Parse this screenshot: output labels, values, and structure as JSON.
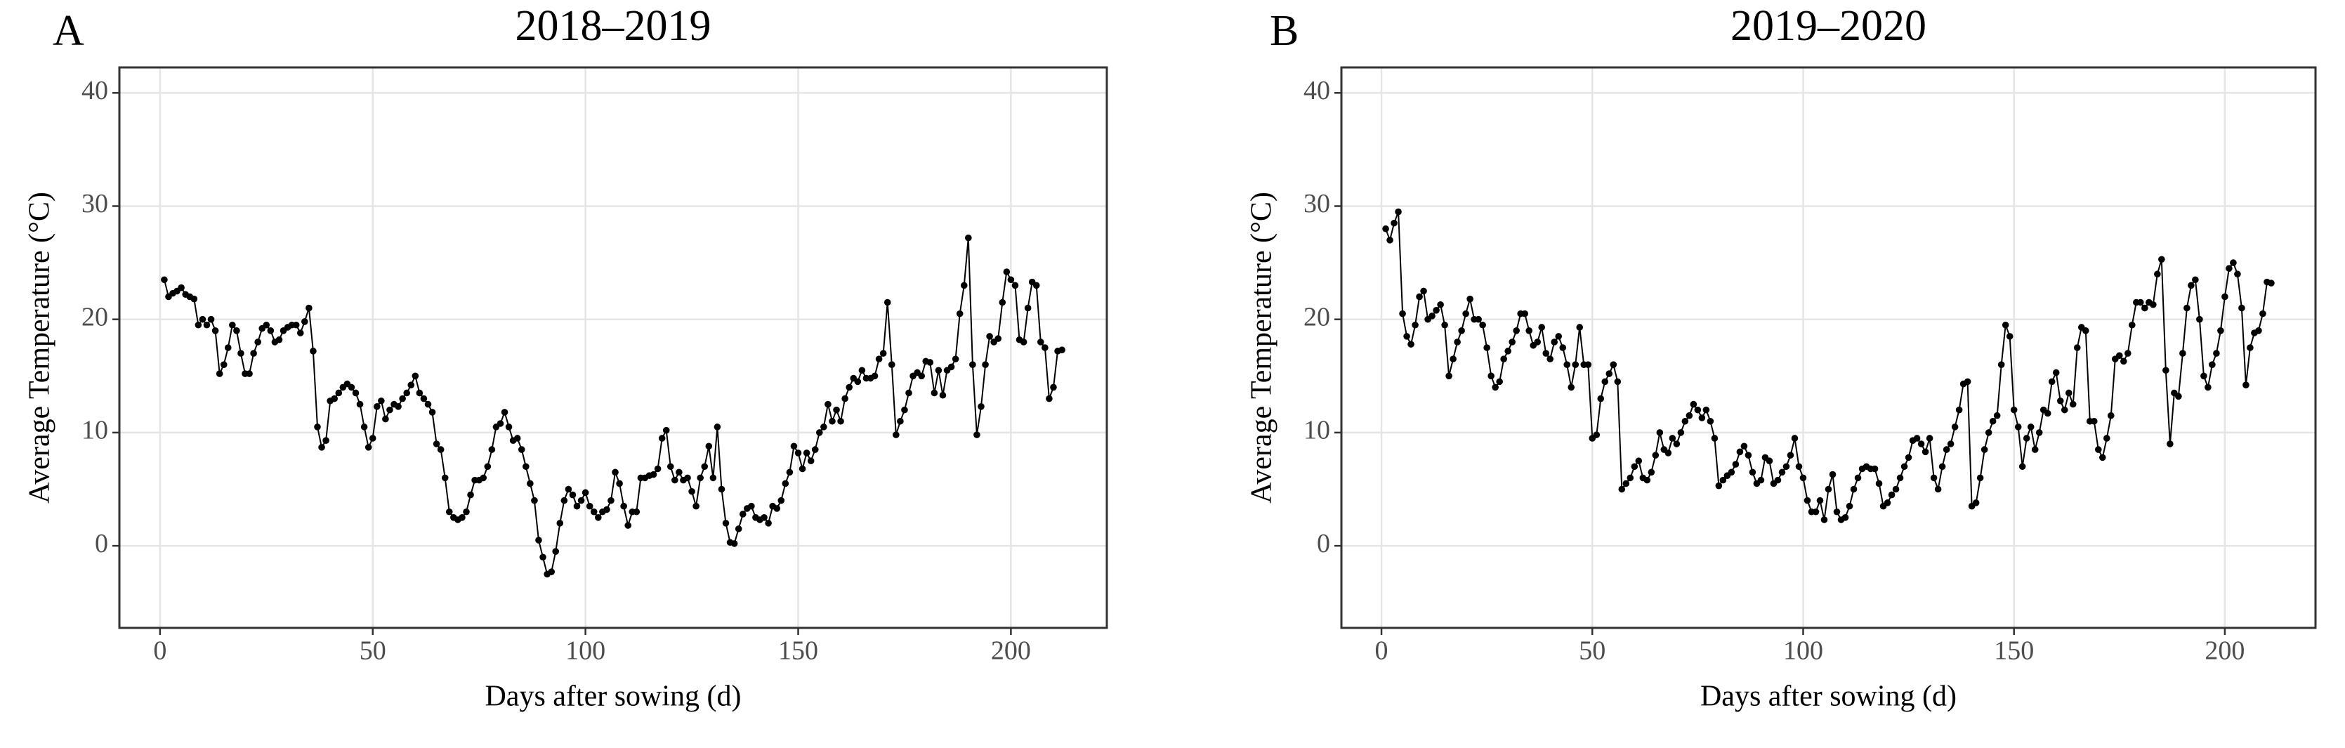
{
  "chart_data": [
    {
      "type": "line",
      "panel_label": "A",
      "title": "2018–2019",
      "x_label": "Days after sowing (d)",
      "y_label": "Average Temperature  (°C)",
      "xlim": [
        -9.55,
        222.55
      ],
      "ylim": [
        -7.25,
        42.25
      ],
      "xticks": [
        0,
        50,
        100,
        150,
        200
      ],
      "yticks": [
        0,
        10,
        20,
        30,
        40
      ],
      "grid": true,
      "series": [
        {
          "name": "Average Temperature",
          "color": "#000000",
          "x": [
            1,
            2,
            3,
            4,
            5,
            6,
            7,
            8,
            9,
            10,
            11,
            12,
            13,
            14,
            15,
            16,
            17,
            18,
            19,
            20,
            21,
            22,
            23,
            24,
            25,
            26,
            27,
            28,
            29,
            30,
            31,
            32,
            33,
            34,
            35,
            36,
            37,
            38,
            39,
            40,
            41,
            42,
            43,
            44,
            45,
            46,
            47,
            48,
            49,
            50,
            51,
            52,
            53,
            54,
            55,
            56,
            57,
            58,
            59,
            60,
            61,
            62,
            63,
            64,
            65,
            66,
            67,
            68,
            69,
            70,
            71,
            72,
            73,
            74,
            75,
            76,
            77,
            78,
            79,
            80,
            81,
            82,
            83,
            84,
            85,
            86,
            87,
            88,
            89,
            90,
            91,
            92,
            93,
            94,
            95,
            96,
            97,
            98,
            99,
            100,
            101,
            102,
            103,
            104,
            105,
            106,
            107,
            108,
            109,
            110,
            111,
            112,
            113,
            114,
            115,
            116,
            117,
            118,
            119,
            120,
            121,
            122,
            123,
            124,
            125,
            126,
            127,
            128,
            129,
            130,
            131,
            132,
            133,
            134,
            135,
            136,
            137,
            138,
            139,
            140,
            141,
            142,
            143,
            144,
            145,
            146,
            147,
            148,
            149,
            150,
            151,
            152,
            153,
            154,
            155,
            156,
            157,
            158,
            159,
            160,
            161,
            162,
            163,
            164,
            165,
            166,
            167,
            168,
            169,
            170,
            171,
            172,
            173,
            174,
            175,
            176,
            177,
            178,
            179,
            180,
            181,
            182,
            183,
            184,
            185,
            186,
            187,
            188,
            189,
            190,
            191,
            192,
            193,
            194,
            195,
            196,
            197,
            198,
            199,
            200,
            201,
            202,
            203,
            204,
            205,
            206,
            207,
            208,
            209,
            210,
            211,
            212
          ],
          "values": [
            23.5,
            22,
            22.3,
            22.5,
            22.8,
            22.2,
            22,
            21.8,
            19.5,
            20,
            19.5,
            20,
            19,
            15.2,
            16,
            17.5,
            19.5,
            19,
            17,
            15.2,
            15.2,
            17,
            18,
            19.2,
            19.5,
            19,
            18,
            18.2,
            19,
            19.3,
            19.5,
            19.5,
            18.8,
            19.8,
            21,
            17.2,
            10.5,
            8.7,
            9.3,
            12.8,
            13,
            13.5,
            14,
            14.3,
            14,
            13.5,
            12.5,
            10.5,
            8.7,
            9.5,
            12.3,
            12.8,
            11.2,
            12,
            12.5,
            12.3,
            13,
            13.5,
            14.2,
            15,
            13.5,
            13,
            12.5,
            11.8,
            9,
            8.5,
            6,
            3,
            2.5,
            2.3,
            2.5,
            3,
            4.5,
            5.8,
            5.8,
            6,
            7,
            8.5,
            10.5,
            10.8,
            11.8,
            10.5,
            9.3,
            9.5,
            8.5,
            7,
            5.5,
            4,
            0.5,
            -1,
            -2.5,
            -2.3,
            -0.5,
            2,
            4,
            5,
            4.5,
            3.5,
            4,
            4.7,
            3.5,
            3,
            2.5,
            3,
            3.2,
            4,
            6.5,
            5.5,
            3.5,
            1.8,
            3,
            3,
            6,
            6,
            6.2,
            6.3,
            6.8,
            9.5,
            10.2,
            7,
            5.8,
            6.5,
            5.8,
            6,
            4.8,
            3.5,
            6,
            7,
            8.8,
            6,
            10.5,
            5,
            2,
            0.3,
            0.2,
            1.5,
            2.8,
            3.3,
            3.5,
            2.5,
            2.3,
            2.5,
            2,
            3.5,
            3.3,
            4,
            5.5,
            6.5,
            8.8,
            8.2,
            6.8,
            8.2,
            7.5,
            8.5,
            10,
            10.5,
            12.5,
            11,
            12,
            11,
            13,
            14,
            14.8,
            14.5,
            15.5,
            14.8,
            14.8,
            15,
            16.5,
            17,
            21.5,
            16,
            9.8,
            11,
            12,
            13.5,
            15,
            15.3,
            15,
            16.3,
            16.2,
            13.5,
            15.5,
            13.3,
            15.5,
            15.8,
            16.5,
            20.5,
            23,
            27.2,
            16,
            9.8,
            12.3,
            16,
            18.5,
            18,
            18.3,
            21.5,
            24.2,
            23.5,
            23,
            18.2,
            18,
            21,
            23.3,
            23,
            18,
            17.5,
            13,
            14,
            17.2,
            17.3
          ]
        }
      ]
    },
    {
      "type": "line",
      "panel_label": "B",
      "title": "2019–2020",
      "x_label": "Days after sowing (d)",
      "y_label": "Average Temperature  (°C)",
      "xlim": [
        -9.5,
        221.5
      ],
      "ylim": [
        -7.25,
        42.25
      ],
      "xticks": [
        0,
        50,
        100,
        150,
        200
      ],
      "yticks": [
        0,
        10,
        20,
        30,
        40
      ],
      "grid": true,
      "series": [
        {
          "name": "Average Temperature",
          "color": "#000000",
          "x": [
            1,
            2,
            3,
            4,
            5,
            6,
            7,
            8,
            9,
            10,
            11,
            12,
            13,
            14,
            15,
            16,
            17,
            18,
            19,
            20,
            21,
            22,
            23,
            24,
            25,
            26,
            27,
            28,
            29,
            30,
            31,
            32,
            33,
            34,
            35,
            36,
            37,
            38,
            39,
            40,
            41,
            42,
            43,
            44,
            45,
            46,
            47,
            48,
            49,
            50,
            51,
            52,
            53,
            54,
            55,
            56,
            57,
            58,
            59,
            60,
            61,
            62,
            63,
            64,
            65,
            66,
            67,
            68,
            69,
            70,
            71,
            72,
            73,
            74,
            75,
            76,
            77,
            78,
            79,
            80,
            81,
            82,
            83,
            84,
            85,
            86,
            87,
            88,
            89,
            90,
            91,
            92,
            93,
            94,
            95,
            96,
            97,
            98,
            99,
            100,
            101,
            102,
            103,
            104,
            105,
            106,
            107,
            108,
            109,
            110,
            111,
            112,
            113,
            114,
            115,
            116,
            117,
            118,
            119,
            120,
            121,
            122,
            123,
            124,
            125,
            126,
            127,
            128,
            129,
            130,
            131,
            132,
            133,
            134,
            135,
            136,
            137,
            138,
            139,
            140,
            141,
            142,
            143,
            144,
            145,
            146,
            147,
            148,
            149,
            150,
            151,
            152,
            153,
            154,
            155,
            156,
            157,
            158,
            159,
            160,
            161,
            162,
            163,
            164,
            165,
            166,
            167,
            168,
            169,
            170,
            171,
            172,
            173,
            174,
            175,
            176,
            177,
            178,
            179,
            180,
            181,
            182,
            183,
            184,
            185,
            186,
            187,
            188,
            189,
            190,
            191,
            192,
            193,
            194,
            195,
            196,
            197,
            198,
            199,
            200,
            201,
            202,
            203,
            204,
            205,
            206,
            207,
            208,
            209,
            210,
            211
          ],
          "values": [
            28,
            27,
            28.5,
            29.5,
            20.5,
            18.5,
            17.8,
            19.5,
            22,
            22.5,
            20,
            20.3,
            20.8,
            21.3,
            19.5,
            15,
            16.5,
            18,
            19,
            20.5,
            21.8,
            20,
            20,
            19.5,
            17.5,
            15,
            14,
            14.5,
            16.5,
            17.2,
            18,
            19,
            20.5,
            20.5,
            19,
            17.7,
            18,
            19.3,
            17,
            16.5,
            18,
            18.5,
            17.5,
            16,
            14,
            16,
            19.3,
            16,
            16,
            9.5,
            9.8,
            13,
            14.5,
            15.2,
            16,
            14.5,
            5,
            5.5,
            6,
            7,
            7.5,
            6,
            5.8,
            6.5,
            8,
            10,
            8.5,
            8.2,
            9.5,
            9,
            10,
            11,
            11.5,
            12.5,
            12,
            11.3,
            12,
            11,
            9.5,
            5.3,
            5.8,
            6.2,
            6.5,
            7.2,
            8.3,
            8.8,
            8,
            6.5,
            5.5,
            5.8,
            7.8,
            7.5,
            5.5,
            5.8,
            6.5,
            7,
            8,
            9.5,
            7,
            6,
            4,
            3,
            3,
            4,
            2.3,
            5,
            6.3,
            3,
            2.3,
            2.5,
            3.5,
            5,
            6,
            6.8,
            7,
            6.8,
            6.8,
            5.5,
            3.5,
            3.8,
            4.5,
            5,
            6,
            7,
            7.8,
            9.3,
            9.5,
            9,
            8.3,
            9.5,
            6,
            5,
            7,
            8.5,
            9,
            10.5,
            12,
            14.3,
            14.5,
            3.5,
            3.8,
            6,
            8.5,
            10,
            11,
            11.5,
            16,
            19.5,
            18.5,
            12,
            10.5,
            7,
            9.5,
            10.5,
            8.5,
            10,
            12,
            11.7,
            14.5,
            15.3,
            12.8,
            12,
            13.5,
            12.5,
            17.5,
            19.3,
            19,
            11,
            11,
            8.5,
            7.8,
            9.5,
            11.5,
            16.5,
            16.8,
            16.3,
            17,
            19.5,
            21.5,
            21.5,
            21,
            21.5,
            21.3,
            24,
            25.3,
            15.5,
            9,
            13.5,
            13.2,
            17,
            21,
            23,
            23.5,
            20,
            15,
            14,
            16,
            17,
            19,
            22,
            24.5,
            25,
            24,
            21,
            14.2,
            17.5,
            18.8,
            19,
            20.5,
            23.3,
            23.2
          ]
        }
      ]
    }
  ]
}
